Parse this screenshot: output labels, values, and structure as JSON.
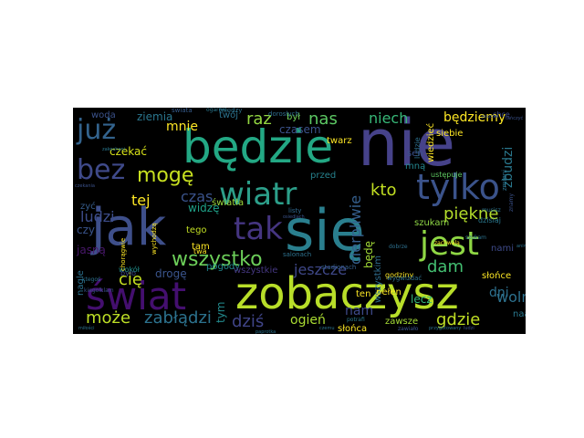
{
  "words": [
    {
      "text": "nie",
      "color": "#46428a"
    },
    {
      "text": "się",
      "color": "#2a7f8e"
    },
    {
      "text": "jak",
      "color": "#3e4f8a"
    },
    {
      "text": "będzie",
      "color": "#23a884"
    },
    {
      "text": "zobaczysz",
      "color": "#b8de29"
    },
    {
      "text": "świat",
      "color": "#440f6f"
    },
    {
      "text": "wiatr",
      "color": "#2c9f8a"
    },
    {
      "text": "tylko",
      "color": "#3b538b"
    },
    {
      "text": "tak",
      "color": "#453581"
    },
    {
      "text": "jest",
      "color": "#8fd744"
    },
    {
      "text": "już",
      "color": "#33638d"
    },
    {
      "text": "bez",
      "color": "#3f4a8a"
    },
    {
      "text": "wszystko",
      "color": "#6cce59"
    },
    {
      "text": "mogę",
      "color": "#c7e020"
    },
    {
      "text": "kto",
      "color": "#c2df22"
    },
    {
      "text": "piękne",
      "color": "#b3dc2b"
    },
    {
      "text": "cię",
      "color": "#c5e021"
    },
    {
      "text": "tej",
      "color": "#fde725"
    },
    {
      "text": "czas",
      "color": "#3a538b"
    },
    {
      "text": "ludzi",
      "color": "#3d4d8a"
    },
    {
      "text": "jeszcze",
      "color": "#3f4889"
    },
    {
      "text": "dam",
      "color": "#43bf71"
    },
    {
      "text": "wolny",
      "color": "#2d718e"
    },
    {
      "text": "może",
      "color": "#bddf26"
    },
    {
      "text": "zabłądzi",
      "color": "#2c728e"
    },
    {
      "text": "dziś",
      "color": "#404588"
    },
    {
      "text": "gdzie",
      "color": "#c0df25"
    },
    {
      "text": "ogień",
      "color": "#aadc32"
    },
    {
      "text": "raz",
      "color": "#93d741"
    },
    {
      "text": "nas",
      "color": "#5cc863"
    },
    {
      "text": "mnie",
      "color": "#fde725"
    },
    {
      "text": "niech",
      "color": "#37b878"
    },
    {
      "text": "będziemy",
      "color": "#fde725"
    },
    {
      "text": "zbudzi",
      "color": "#2a788e"
    },
    {
      "text": "czekać",
      "color": "#d8e219"
    },
    {
      "text": "czasem",
      "color": "#3b528b"
    },
    {
      "text": "twarz",
      "color": "#fde725"
    },
    {
      "text": "cierpliwie",
      "color": "#355f8d"
    },
    {
      "text": "nam",
      "color": "#3e4989"
    },
    {
      "text": "dni",
      "color": "#2d708e"
    },
    {
      "text": "bóg",
      "color": "#2e6e8e"
    },
    {
      "text": "słońce",
      "color": "#fde725"
    },
    {
      "text": "słońca",
      "color": "#fde725"
    },
    {
      "text": "zawsze",
      "color": "#a5db36"
    },
    {
      "text": "pełen",
      "color": "#fde725"
    },
    {
      "text": "lecz",
      "color": "#35b779"
    },
    {
      "text": "ten",
      "color": "#fde725"
    },
    {
      "text": "będę",
      "color": "#a2da37"
    },
    {
      "text": "szukam",
      "color": "#8ed645"
    },
    {
      "text": "czy",
      "color": "#3a548c"
    },
    {
      "text": "zyć",
      "color": "#365d8d"
    },
    {
      "text": "jasną",
      "color": "#48186a"
    },
    {
      "text": "drogę",
      "color": "#3a548c"
    },
    {
      "text": "pogody",
      "color": "#23898e"
    },
    {
      "text": "wszystkie",
      "color": "#453781"
    },
    {
      "text": "tym",
      "color": "#238a8d"
    },
    {
      "text": "światła",
      "color": "#9dd93b"
    },
    {
      "text": "widzę",
      "color": "#1fa188"
    },
    {
      "text": "tego",
      "color": "#c2df23"
    },
    {
      "text": "tam",
      "color": "#fde725"
    },
    {
      "text": "woda",
      "color": "#3b528b"
    },
    {
      "text": "ziemia",
      "color": "#2a768e"
    },
    {
      "text": "twój",
      "color": "#2c728e"
    },
    {
      "text": "był",
      "color": "#70cf57"
    },
    {
      "text": "siebie",
      "color": "#fde725"
    },
    {
      "text": "wiedzieć",
      "color": "#fde725"
    },
    {
      "text": "nami",
      "color": "#3e4a89"
    },
    {
      "text": "godziny",
      "color": "#fde725"
    },
    {
      "text": "przed",
      "color": "#26828e"
    },
    {
      "text": "wszystkim",
      "color": "#2e6d8e"
    },
    {
      "text": "ludzie",
      "color": "#2d708e"
    },
    {
      "text": "sen",
      "color": "#3b528b"
    },
    {
      "text": "mną",
      "color": "#24868e"
    },
    {
      "text": "ustępuje",
      "color": "#5ec962"
    },
    {
      "text": "dzisiaj",
      "color": "#2a788e"
    },
    {
      "text": "nagle",
      "color": "#2c728e"
    },
    {
      "text": "wokół",
      "color": "#21908d"
    },
    {
      "text": "było",
      "color": "#3e4989"
    },
    {
      "text": "naa",
      "color": "#2a788e"
    },
    {
      "text": "twa",
      "color": "#fde725"
    },
    {
      "text": "listy",
      "color": "#31688e"
    },
    {
      "text": "między",
      "color": "#2c728e"
    },
    {
      "text": "świata",
      "color": "#365c8d"
    },
    {
      "text": "chcę",
      "color": "#3e4c8a"
    },
    {
      "text": "wychodzą",
      "color": "#fde725"
    },
    {
      "text": "zmieni",
      "color": "#2c728e"
    },
    {
      "text": "wygwizdać",
      "color": "#2d708e"
    },
    {
      "text": "dorosłych",
      "color": "#2e6e8e"
    },
    {
      "text": "salonach",
      "color": "#2d718e"
    },
    {
      "text": "stadionach",
      "color": "#35608d"
    },
    {
      "text": "ogarnie",
      "color": "#2a788e"
    },
    {
      "text": "chorągwie",
      "color": "#fde725"
    },
    {
      "text": "ktegoś",
      "color": "#2c728e"
    },
    {
      "text": "kiegolklam",
      "color": "#3b528b"
    },
    {
      "text": "zachwalą",
      "color": "#fde725"
    },
    {
      "text": "znamy",
      "color": "#3b528b"
    },
    {
      "text": "szukam",
      "color": "#2c728e"
    },
    {
      "text": "potrafi",
      "color": "#2a788e"
    },
    {
      "text": "dobrze",
      "color": "#2d708e"
    },
    {
      "text": "zawiało",
      "color": "#3b528b"
    },
    {
      "text": "paprotka",
      "color": "#2c728e"
    },
    {
      "text": "musisz",
      "color": "#2c728e"
    },
    {
      "text": "jeszcze",
      "color": "#3b528b"
    },
    {
      "text": "miłości",
      "color": "#2c728e"
    },
    {
      "text": "czemu",
      "color": "#2c728e"
    },
    {
      "text": "tańczyć",
      "color": "#3b528b"
    },
    {
      "text": "przygotowany",
      "color": "#2c728e"
    },
    {
      "text": "zakochani",
      "color": "#2a788e"
    },
    {
      "text": "czekania",
      "color": "#3b528b"
    },
    {
      "text": "anim",
      "color": "#2c728e"
    },
    {
      "text": "osiedlach",
      "color": "#3b528b"
    },
    {
      "text": "ludzi",
      "color": "#3b528b"
    }
  ]
}
